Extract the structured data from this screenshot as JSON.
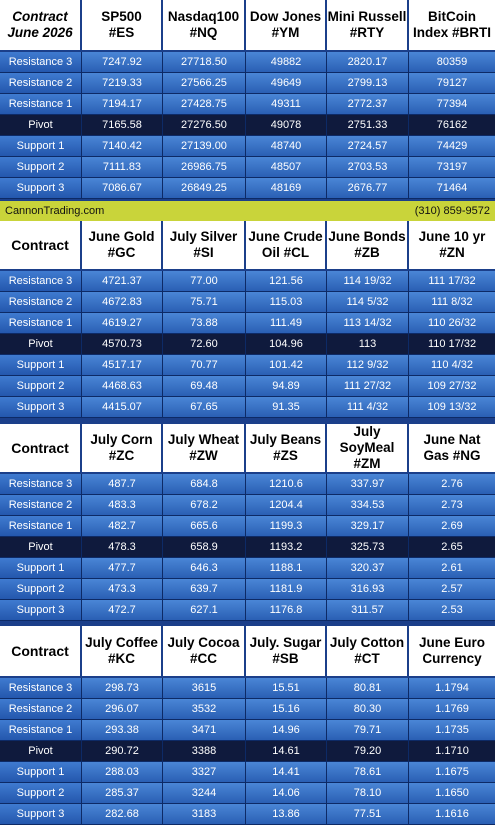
{
  "corner": {
    "line1": "Contract",
    "line2": "June 2026"
  },
  "banner": {
    "site": "CannonTrading.com",
    "phone": "(310) 859-9572"
  },
  "row_labels": [
    "Resistance 3",
    "Resistance 2",
    "Resistance 1",
    "Pivot",
    "Support 1",
    "Support 2",
    "Support 3"
  ],
  "sections": [
    {
      "header_label": "",
      "headers": [
        [
          "SP500",
          "#ES"
        ],
        [
          "Nasdaq100",
          "#NQ"
        ],
        [
          "Dow Jones",
          "#YM"
        ],
        [
          "Mini Russell",
          "#RTY"
        ],
        [
          "BitCoin",
          "Index #BRTI"
        ]
      ],
      "rows": [
        [
          "7247.92",
          "27718.50",
          "49882",
          "2820.17",
          "80359"
        ],
        [
          "7219.33",
          "27566.25",
          "49649",
          "2799.13",
          "79127"
        ],
        [
          "7194.17",
          "27428.75",
          "49311",
          "2772.37",
          "77394"
        ],
        [
          "7165.58",
          "27276.50",
          "49078",
          "2751.33",
          "76162"
        ],
        [
          "7140.42",
          "27139.00",
          "48740",
          "2724.57",
          "74429"
        ],
        [
          "7111.83",
          "26986.75",
          "48507",
          "2703.53",
          "73197"
        ],
        [
          "7086.67",
          "26849.25",
          "48169",
          "2676.77",
          "71464"
        ]
      ]
    },
    {
      "header_label": "Contract",
      "headers": [
        [
          "June Gold",
          "#GC"
        ],
        [
          "July Silver",
          "#SI"
        ],
        [
          "June Crude",
          "Oil #CL"
        ],
        [
          "June Bonds",
          "#ZB"
        ],
        [
          "June 10 yr",
          "#ZN"
        ]
      ],
      "rows": [
        [
          "4721.37",
          "77.00",
          "121.56",
          "114 19/32",
          "111 17/32"
        ],
        [
          "4672.83",
          "75.71",
          "115.03",
          "114  5/32",
          "111  8/32"
        ],
        [
          "4619.27",
          "73.88",
          "111.49",
          "113 14/32",
          "110 26/32"
        ],
        [
          "4570.73",
          "72.60",
          "104.96",
          "113",
          "110 17/32"
        ],
        [
          "4517.17",
          "70.77",
          "101.42",
          "112  9/32",
          "110  4/32"
        ],
        [
          "4468.63",
          "69.48",
          "94.89",
          "111 27/32",
          "109 27/32"
        ],
        [
          "4415.07",
          "67.65",
          "91.35",
          "111  4/32",
          "109 13/32"
        ]
      ]
    },
    {
      "header_label": "Contract",
      "headers": [
        [
          "July Corn",
          "#ZC"
        ],
        [
          "July  Wheat",
          "#ZW"
        ],
        [
          "July Beans",
          "#ZS"
        ],
        [
          "July",
          "SoyMeal",
          "#ZM"
        ],
        [
          "June Nat",
          "Gas #NG"
        ]
      ],
      "rows": [
        [
          "487.7",
          "684.8",
          "1210.6",
          "337.97",
          "2.76"
        ],
        [
          "483.3",
          "678.2",
          "1204.4",
          "334.53",
          "2.73"
        ],
        [
          "482.7",
          "665.6",
          "1199.3",
          "329.17",
          "2.69"
        ],
        [
          "478.3",
          "658.9",
          "1193.2",
          "325.73",
          "2.65"
        ],
        [
          "477.7",
          "646.3",
          "1188.1",
          "320.37",
          "2.61"
        ],
        [
          "473.3",
          "639.7",
          "1181.9",
          "316.93",
          "2.57"
        ],
        [
          "472.7",
          "627.1",
          "1176.8",
          "311.57",
          "2.53"
        ]
      ]
    },
    {
      "header_label": "Contract",
      "headers": [
        [
          "July Coffee",
          "#KC"
        ],
        [
          "July Cocoa",
          "#CC"
        ],
        [
          "July. Sugar",
          "#SB"
        ],
        [
          "July Cotton",
          "#CT"
        ],
        [
          "June Euro",
          "Currency"
        ]
      ],
      "rows": [
        [
          "298.73",
          "3615",
          "15.51",
          "80.81",
          "1.1794"
        ],
        [
          "296.07",
          "3532",
          "15.16",
          "80.30",
          "1.1769"
        ],
        [
          "293.38",
          "3471",
          "14.96",
          "79.71",
          "1.1735"
        ],
        [
          "290.72",
          "3388",
          "14.61",
          "79.20",
          "1.1710"
        ],
        [
          "288.03",
          "3327",
          "14.41",
          "78.61",
          "1.1675"
        ],
        [
          "285.37",
          "3244",
          "14.06",
          "78.10",
          "1.1650"
        ],
        [
          "282.68",
          "3183",
          "13.86",
          "77.51",
          "1.1616"
        ]
      ]
    }
  ]
}
